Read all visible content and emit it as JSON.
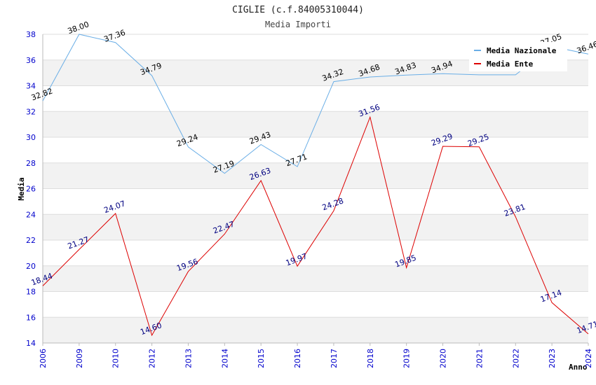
{
  "chart_data": {
    "type": "line",
    "title": "CIGLIE (c.f.84005310044)",
    "subtitle": "Media Importi",
    "xlabel": "Anno",
    "ylabel": "Media",
    "categories": [
      "2006",
      "2009",
      "2010",
      "2012",
      "2013",
      "2014",
      "2015",
      "2016",
      "2017",
      "2018",
      "2019",
      "2020",
      "2021",
      "2022",
      "2023",
      "2024"
    ],
    "ylim": [
      14,
      38
    ],
    "yticks": [
      14,
      16,
      18,
      20,
      22,
      24,
      26,
      28,
      30,
      32,
      34,
      36,
      38
    ],
    "legend_position": "top-right",
    "series": [
      {
        "name": "Media Nazionale",
        "color": "#6aaee6",
        "values": [
          32.82,
          38.0,
          37.36,
          34.79,
          29.24,
          27.19,
          29.43,
          27.71,
          34.32,
          34.68,
          34.83,
          34.94,
          34.85,
          34.85,
          37.05,
          36.46
        ],
        "labels": [
          "32.82",
          "38.00",
          "37.36",
          "34.79",
          "29.24",
          "27.19",
          "29.43",
          "27.71",
          "34.32",
          "34.68",
          "34.83",
          "34.94",
          "",
          "",
          "37.05",
          "36.46"
        ]
      },
      {
        "name": "Media Ente",
        "color": "#dd0000",
        "values": [
          18.44,
          21.27,
          24.07,
          14.6,
          19.56,
          22.47,
          26.63,
          19.97,
          24.28,
          31.56,
          19.85,
          29.29,
          29.25,
          23.81,
          17.14,
          14.71
        ],
        "labels": [
          "18.44",
          "21.27",
          "24.07",
          "14.60",
          "19.56",
          "22.47",
          "26.63",
          "19.97",
          "24.28",
          "31.56",
          "19.85",
          "29.29",
          "29.25",
          "23.81",
          "17.14",
          "14.71"
        ]
      }
    ]
  }
}
